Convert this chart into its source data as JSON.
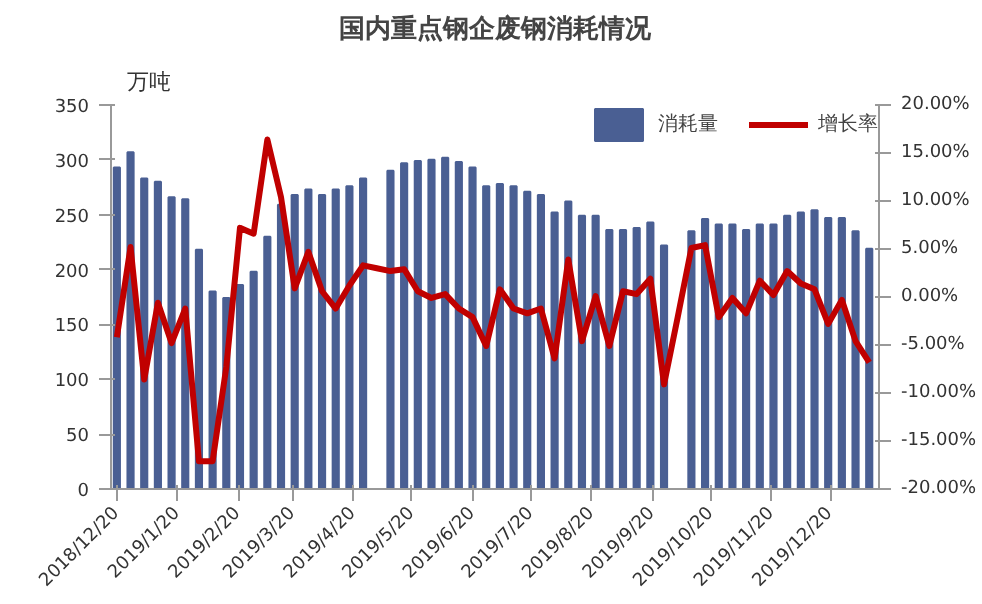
{
  "chart_data": {
    "type": "bar",
    "title": "国内重点钢企废钢消耗情况",
    "ylabel": "万吨",
    "x": [
      "2018-12-20",
      "2018-12-27",
      "2019-01-03",
      "2019-01-10",
      "2019-01-17",
      "2019-01-24",
      "2019-01-31",
      "2019-02-07",
      "2019-02-14",
      "2019-02-21",
      "2019-02-28",
      "2019-03-07",
      "2019-03-14",
      "2019-03-21",
      "2019-03-28",
      "2019-04-04",
      "2019-04-11",
      "2019-04-18",
      "2019-04-25",
      "2019-05-02",
      "2019-05-09",
      "2019-05-16",
      "2019-05-23",
      "2019-05-30",
      "2019-06-06",
      "2019-06-13",
      "2019-06-20",
      "2019-06-27",
      "2019-07-04",
      "2019-07-11",
      "2019-07-18",
      "2019-07-25",
      "2019-08-01",
      "2019-08-08",
      "2019-08-15",
      "2019-08-22",
      "2019-08-29",
      "2019-09-05",
      "2019-09-12",
      "2019-09-19",
      "2019-09-26",
      "2019-10-03",
      "2019-10-10",
      "2019-10-17",
      "2019-10-24",
      "2019-10-31",
      "2019-11-07",
      "2019-11-14",
      "2019-11-21",
      "2019-11-28",
      "2019-12-05",
      "2019-12-12",
      "2019-12-19",
      "2019-12-26",
      "2020-01-02",
      "2020-01-09"
    ],
    "series": [
      {
        "name": "消耗量",
        "color": "#4a5f93",
        "values": [
          293,
          307,
          283,
          280,
          266,
          264,
          218,
          180,
          174,
          186,
          198,
          230,
          259,
          268,
          273,
          268,
          273,
          276,
          283,
          null,
          290,
          297,
          299,
          300,
          302,
          298,
          293,
          276,
          278,
          276,
          271,
          268,
          252,
          262,
          249,
          249,
          236,
          236,
          238,
          243,
          222,
          null,
          235,
          246,
          241,
          241,
          236,
          241,
          241,
          249,
          252,
          254,
          247,
          247,
          235,
          219
        ]
      },
      {
        "name": "增长率",
        "type": "line",
        "axis": "y2",
        "color": "#c00000",
        "values": [
          -4.2,
          5.2,
          -8.6,
          -0.6,
          -4.8,
          -1.2,
          -17.1,
          -17.1,
          -7.3,
          7.2,
          6.6,
          16.4,
          10.4,
          0.9,
          4.7,
          0.6,
          -1.2,
          1.2,
          3.3,
          3.0,
          2.7,
          2.9,
          0.6,
          -0.1,
          0.3,
          -1.2,
          -2.1,
          -5.1,
          0.8,
          -1.2,
          -1.7,
          -1.2,
          -6.4,
          3.9,
          -4.6,
          0.1,
          -5.1,
          0.6,
          0.3,
          1.9,
          -9.1,
          -2.1,
          5.1,
          5.4,
          -2.1,
          -0.1,
          -1.7,
          1.7,
          0.2,
          2.7,
          1.4,
          0.8,
          -2.8,
          -0.3,
          -4.6,
          -6.8
        ]
      }
    ],
    "xlim": [
      "2018-12-17",
      "2020-01-14"
    ],
    "xticks": [
      {
        "value": "2018-12-20",
        "label": "2018/12/20"
      },
      {
        "value": "2019-01-20",
        "label": "2019/1/20"
      },
      {
        "value": "2019-02-20",
        "label": "2019/2/20"
      },
      {
        "value": "2019-03-20",
        "label": "2019/3/20"
      },
      {
        "value": "2019-04-20",
        "label": "2019/4/20"
      },
      {
        "value": "2019-05-20",
        "label": "2019/5/20"
      },
      {
        "value": "2019-06-20",
        "label": "2019/6/20"
      },
      {
        "value": "2019-07-20",
        "label": "2019/7/20"
      },
      {
        "value": "2019-08-20",
        "label": "2019/8/20"
      },
      {
        "value": "2019-09-20",
        "label": "2019/9/20"
      },
      {
        "value": "2019-10-20",
        "label": "2019/10/20"
      },
      {
        "value": "2019-11-20",
        "label": "2019/11/20"
      },
      {
        "value": "2019-12-20",
        "label": "2019/12/20"
      }
    ],
    "ylim": [
      0,
      350
    ],
    "yticks": [
      0,
      50,
      100,
      150,
      200,
      250,
      300,
      350
    ],
    "y2lim": [
      -20,
      20
    ],
    "y2ticks": [
      {
        "value": -20,
        "label": "-20.00%"
      },
      {
        "value": -15,
        "label": "-15.00%"
      },
      {
        "value": -10,
        "label": "-10.00%"
      },
      {
        "value": -5,
        "label": "-5.00%"
      },
      {
        "value": 0,
        "label": "0.00%"
      },
      {
        "value": 5,
        "label": "5.00%"
      },
      {
        "value": 10,
        "label": "10.00%"
      },
      {
        "value": 15,
        "label": "15.00%"
      },
      {
        "value": 20,
        "label": "20.00%"
      }
    ],
    "legend": "top",
    "grid": false
  }
}
